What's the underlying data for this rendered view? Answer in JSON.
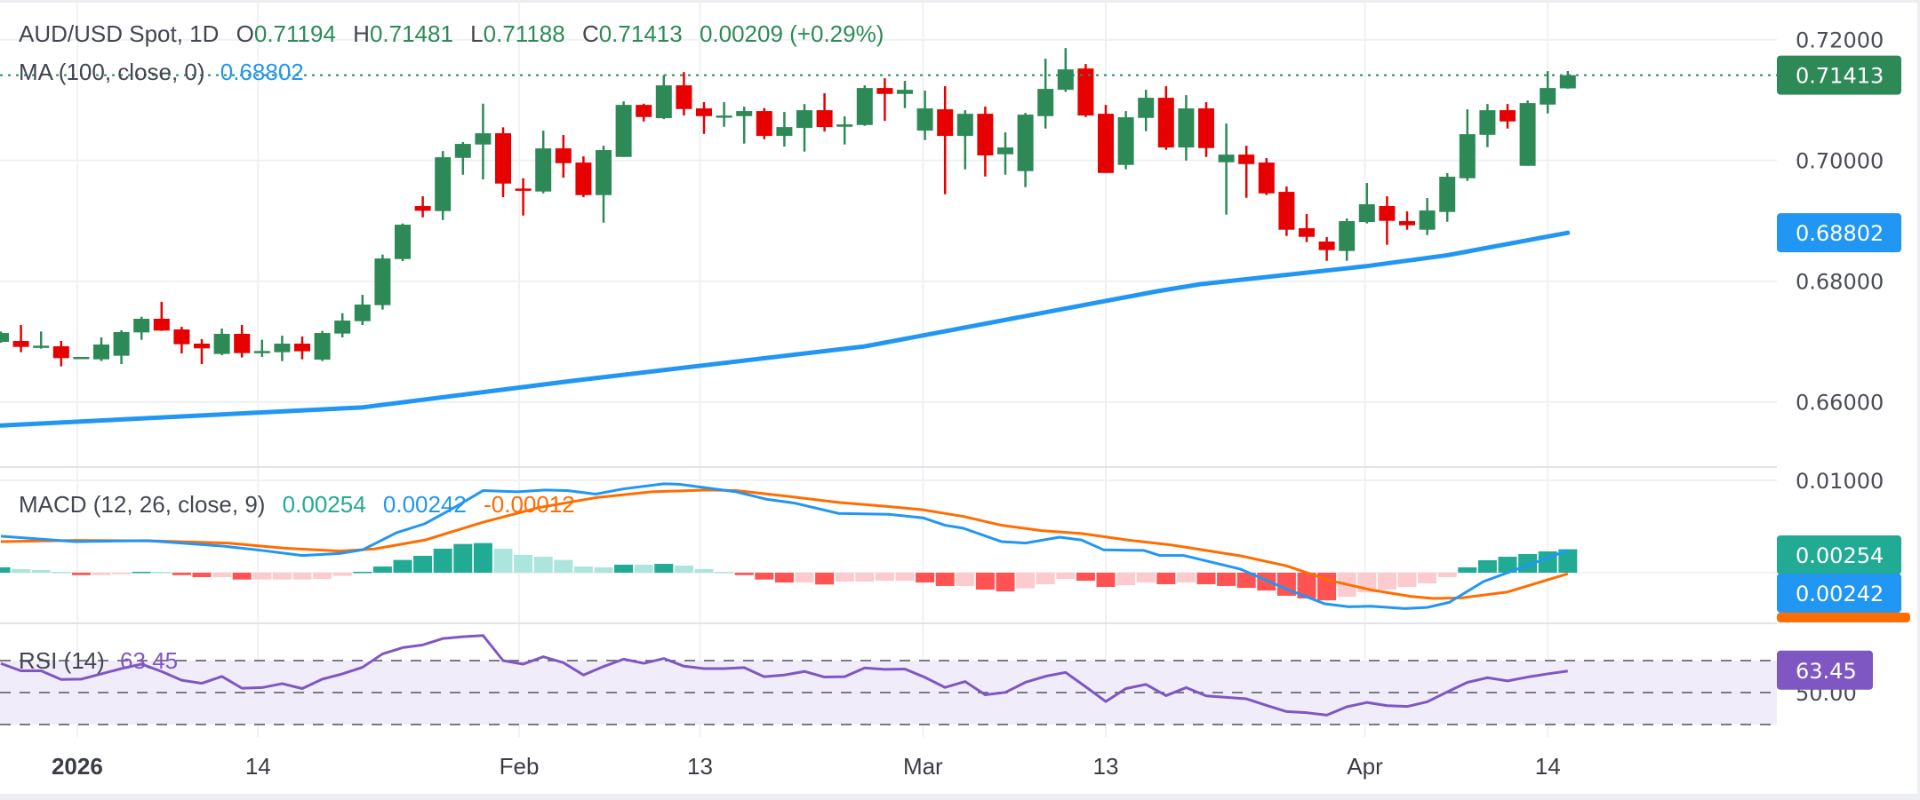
{
  "header": {
    "symbol": "AUD/USD Spot, 1D",
    "o_label": "O",
    "o_value": "0.71194",
    "h_label": "H",
    "h_value": "0.71481",
    "l_label": "L",
    "l_value": "0.71188",
    "c_label": "C",
    "c_value": "0.71413",
    "change": "0.00209 (+0.29%)"
  },
  "ma_legend": {
    "label": "MA (100, close, 0)",
    "value": "0.68802"
  },
  "macd_legend": {
    "label": "MACD (12, 26, close, 9)",
    "hist_value": "0.00254",
    "macd_value": "0.00242",
    "signal_value": "-0.00012"
  },
  "rsi_legend": {
    "label": "RSI (14)",
    "value": "63.45"
  },
  "colors": {
    "up": "#2d8a57",
    "down": "#e60000",
    "ma": "#2196f3",
    "macd": "#2196f3",
    "signal": "#ff6d00",
    "hist_up_strong": "#22ab94",
    "hist_up_weak": "#ace5dc",
    "hist_down_strong": "#ff5252",
    "hist_down_weak": "#fccbcd",
    "rsi": "#7e57c2",
    "rsi_band": "#f0ecf9",
    "grid": "#f0f1f4",
    "divider": "#e0e3eb"
  },
  "chart_data": [
    {
      "type": "candlestick",
      "title": "AUD/USD Spot, 1D",
      "ylim": [
        0.6475,
        0.723
      ],
      "y_ticks": [
        "0.72000",
        "0.70000",
        "0.68000",
        "0.66000"
      ],
      "y_tick_values": [
        0.72,
        0.7,
        0.68,
        0.66
      ],
      "last_price": {
        "value": 0.71413,
        "label": "0.71413"
      },
      "ma_last": {
        "value": 0.68802,
        "label": "0.68802"
      },
      "x_labels": [
        {
          "label": "2026",
          "bar": 3.8
        },
        {
          "label": "14",
          "bar": 12.8
        },
        {
          "label": "Feb",
          "bar": 25.8
        },
        {
          "label": "13",
          "bar": 34.8
        },
        {
          "label": "Mar",
          "bar": 45.9
        },
        {
          "label": "13",
          "bar": 55
        },
        {
          "label": "Apr",
          "bar": 67.9
        },
        {
          "label": "14",
          "bar": 77
        }
      ],
      "ohlc": [
        [
          0.66995,
          0.67167,
          0.66981,
          0.67142
        ],
        [
          0.6701,
          0.67275,
          0.66824,
          0.66912
        ],
        [
          0.66912,
          0.67167,
          0.66883,
          0.66932
        ],
        [
          0.66922,
          0.6701,
          0.66589,
          0.66726
        ],
        [
          0.66726,
          0.66746,
          0.66726,
          0.66746
        ],
        [
          0.66706,
          0.67069,
          0.66677,
          0.66951
        ],
        [
          0.66765,
          0.67187,
          0.66628,
          0.67157
        ],
        [
          0.67152,
          0.67412,
          0.6703,
          0.67378
        ],
        [
          0.67378,
          0.67657,
          0.67177,
          0.67182
        ],
        [
          0.67201,
          0.67245,
          0.66804,
          0.66956
        ],
        [
          0.66966,
          0.6704,
          0.66628,
          0.66888
        ],
        [
          0.66795,
          0.67216,
          0.66775,
          0.67128
        ],
        [
          0.67128,
          0.67275,
          0.66736,
          0.66809
        ],
        [
          0.66824,
          0.6703,
          0.66746,
          0.66844
        ],
        [
          0.66824,
          0.67098,
          0.66677,
          0.66966
        ],
        [
          0.66966,
          0.67084,
          0.66706,
          0.66839
        ],
        [
          0.66701,
          0.67177,
          0.66677,
          0.67142
        ],
        [
          0.67133,
          0.67471,
          0.67069,
          0.67348
        ],
        [
          0.67338,
          0.67775,
          0.67275,
          0.67613
        ],
        [
          0.67603,
          0.68441,
          0.6753,
          0.68377
        ],
        [
          0.68367,
          0.68956,
          0.68333,
          0.68936
        ],
        [
          0.69245,
          0.69406,
          0.69058,
          0.69166
        ],
        [
          0.69161,
          0.70156,
          0.69014,
          0.70053
        ],
        [
          0.70043,
          0.70303,
          0.69764,
          0.70274
        ],
        [
          0.70264,
          0.7094,
          0.69686,
          0.7045
        ],
        [
          0.7045,
          0.70548,
          0.69392,
          0.69617
        ],
        [
          0.69534,
          0.69705,
          0.69088,
          0.69504
        ],
        [
          0.69485,
          0.70494,
          0.69455,
          0.702
        ],
        [
          0.702,
          0.70421,
          0.69715,
          0.69955
        ],
        [
          0.69965,
          0.70068,
          0.69392,
          0.69426
        ],
        [
          0.69426,
          0.70244,
          0.6897,
          0.70171
        ],
        [
          0.70058,
          0.70979,
          0.70058,
          0.7092
        ],
        [
          0.7092,
          0.7094,
          0.70646,
          0.7072
        ],
        [
          0.707,
          0.71415,
          0.70685,
          0.71244
        ],
        [
          0.71244,
          0.71464,
          0.70744,
          0.70852
        ],
        [
          0.70862,
          0.70965,
          0.7044,
          0.70734
        ],
        [
          0.7071,
          0.70965,
          0.70558,
          0.70744
        ],
        [
          0.70734,
          0.70891,
          0.70279,
          0.70818
        ],
        [
          0.70818,
          0.70867,
          0.70352,
          0.70406
        ],
        [
          0.70406,
          0.70803,
          0.7023,
          0.70553
        ],
        [
          0.70538,
          0.70935,
          0.70146,
          0.70832
        ],
        [
          0.70832,
          0.71112,
          0.70479,
          0.70553
        ],
        [
          0.70558,
          0.70729,
          0.70264,
          0.70597
        ],
        [
          0.70587,
          0.71244,
          0.70573,
          0.712
        ],
        [
          0.712,
          0.71361,
          0.70656,
          0.71102
        ],
        [
          0.71102,
          0.71317,
          0.70867,
          0.7117
        ],
        [
          0.70494,
          0.71156,
          0.70337,
          0.70862
        ],
        [
          0.70847,
          0.71229,
          0.69441,
          0.70406
        ],
        [
          0.70406,
          0.70832,
          0.69852,
          0.70773
        ],
        [
          0.70773,
          0.70891,
          0.69735,
          0.70083
        ],
        [
          0.70102,
          0.70465,
          0.69764,
          0.70215
        ],
        [
          0.69823,
          0.70788,
          0.69558,
          0.70759
        ],
        [
          0.70734,
          0.71685,
          0.70528,
          0.71185
        ],
        [
          0.7117,
          0.71861,
          0.71136,
          0.71508
        ],
        [
          0.71523,
          0.71597,
          0.7072,
          0.70744
        ],
        [
          0.70773,
          0.7092,
          0.69793,
          0.69793
        ],
        [
          0.69926,
          0.70818,
          0.69852,
          0.70715
        ],
        [
          0.70705,
          0.7117,
          0.70484,
          0.71038
        ],
        [
          0.71038,
          0.71229,
          0.70176,
          0.70215
        ],
        [
          0.70215,
          0.71082,
          0.7,
          0.70862
        ],
        [
          0.70862,
          0.70965,
          0.70058,
          0.70205
        ],
        [
          0.6997,
          0.70612,
          0.69103,
          0.70097
        ],
        [
          0.70097,
          0.70244,
          0.69382,
          0.6994
        ],
        [
          0.69965,
          0.70038,
          0.69426,
          0.69455
        ],
        [
          0.6948,
          0.69568,
          0.6875,
          0.68853
        ],
        [
          0.68877,
          0.69112,
          0.68647,
          0.68735
        ],
        [
          0.68657,
          0.6873,
          0.68338,
          0.68515
        ],
        [
          0.685,
          0.69039,
          0.68338,
          0.68995
        ],
        [
          0.6898,
          0.69627,
          0.68956,
          0.69274
        ],
        [
          0.69245,
          0.69406,
          0.68603,
          0.69
        ],
        [
          0.68995,
          0.69156,
          0.68853,
          0.68926
        ],
        [
          0.68853,
          0.69377,
          0.68764,
          0.69171
        ],
        [
          0.69147,
          0.69789,
          0.68985,
          0.6973
        ],
        [
          0.69705,
          0.70847,
          0.69661,
          0.70435
        ],
        [
          0.70425,
          0.70935,
          0.7022,
          0.70832
        ],
        [
          0.70832,
          0.70935,
          0.70528,
          0.70646
        ],
        [
          0.69911,
          0.70994,
          0.69911,
          0.7095
        ],
        [
          0.70925,
          0.71479,
          0.70778,
          0.712
        ],
        [
          0.71194,
          0.71481,
          0.71188,
          0.71413
        ]
      ],
      "ma_100": [
        [
          0,
          0.6561
        ],
        [
          18,
          0.6591
        ],
        [
          28.7,
          0.6636
        ],
        [
          43,
          0.6692
        ],
        [
          57.5,
          0.6783
        ],
        [
          59.7,
          0.6795
        ],
        [
          68,
          0.6825
        ],
        [
          72,
          0.6843
        ],
        [
          78,
          0.68802
        ]
      ]
    },
    {
      "type": "macd",
      "ylim": [
        -0.00529,
        0.01144
      ],
      "y_ticks": [
        "0.01000"
      ],
      "y_tick_values": [
        0.01
      ],
      "histogram": [
        0.00058,
        0.00039,
        0.00029,
        0.0001,
        -0.00026,
        -0.00026,
        -0.00016,
        0.0001,
        0.0001,
        -0.00026,
        -0.00048,
        -0.00048,
        -0.00074,
        -0.00074,
        -0.00074,
        -0.00074,
        -0.00067,
        -0.00035,
        0.0001,
        0.00067,
        0.00138,
        0.00183,
        0.0026,
        0.00311,
        0.00321,
        0.0026,
        0.00193,
        0.00173,
        0.00138,
        0.00067,
        0.00058,
        0.00087,
        0.00087,
        0.00096,
        0.00077,
        0.00039,
        0.0001,
        -0.00026,
        -0.00074,
        -0.00106,
        -0.00106,
        -0.00128,
        -0.00096,
        -0.00096,
        -0.00087,
        -0.00087,
        -0.00106,
        -0.00144,
        -0.00144,
        -0.00183,
        -0.00202,
        -0.0017,
        -0.00125,
        -0.00067,
        -0.00087,
        -0.00154,
        -0.00135,
        -0.00106,
        -0.00125,
        -0.00106,
        -0.00125,
        -0.00144,
        -0.00164,
        -0.00193,
        -0.0025,
        -0.00279,
        -0.00299,
        -0.0026,
        -0.00212,
        -0.00183,
        -0.00154,
        -0.00116,
        -0.00048,
        0.00058,
        0.00135,
        0.00173,
        0.00202,
        0.00231,
        0.00254
      ],
      "macd_line": [
        [
          0,
          0.00395
        ],
        [
          3.7,
          0.00337
        ],
        [
          7.3,
          0.00347
        ],
        [
          11,
          0.00289
        ],
        [
          13,
          0.00241
        ],
        [
          15,
          0.00186
        ],
        [
          16.9,
          0.00209
        ],
        [
          18,
          0.00247
        ],
        [
          19.7,
          0.00433
        ],
        [
          21.1,
          0.0053
        ],
        [
          22.5,
          0.00697
        ],
        [
          24,
          0.00889
        ],
        [
          25.7,
          0.00876
        ],
        [
          27.1,
          0.00896
        ],
        [
          28.2,
          0.00889
        ],
        [
          29.6,
          0.00851
        ],
        [
          31,
          0.00908
        ],
        [
          33,
          0.00963
        ],
        [
          33.8,
          0.00957
        ],
        [
          36.6,
          0.00876
        ],
        [
          38.1,
          0.00796
        ],
        [
          39.5,
          0.00754
        ],
        [
          41.7,
          0.00642
        ],
        [
          44.2,
          0.00632
        ],
        [
          45.9,
          0.00594
        ],
        [
          47,
          0.00514
        ],
        [
          47.9,
          0.00482
        ],
        [
          49.8,
          0.00337
        ],
        [
          51,
          0.00321
        ],
        [
          52.7,
          0.00385
        ],
        [
          53.8,
          0.00353
        ],
        [
          54.9,
          0.00247
        ],
        [
          56.9,
          0.00241
        ],
        [
          57.7,
          0.00186
        ],
        [
          58.9,
          0.00186
        ],
        [
          61.7,
          0.00039
        ],
        [
          64,
          -0.00177
        ],
        [
          65.9,
          -0.00337
        ],
        [
          67.1,
          -0.00369
        ],
        [
          68.2,
          -0.00363
        ],
        [
          69.9,
          -0.00388
        ],
        [
          71,
          -0.00376
        ],
        [
          72.1,
          -0.00321
        ],
        [
          73.8,
          -0.00096
        ],
        [
          75.2,
          0.00016
        ],
        [
          78,
          0.00242
        ]
      ],
      "signal_line": [
        [
          0,
          0.00337
        ],
        [
          3.7,
          0.0035
        ],
        [
          7.9,
          0.00343
        ],
        [
          11.3,
          0.00321
        ],
        [
          14.1,
          0.00266
        ],
        [
          16.9,
          0.00234
        ],
        [
          18.6,
          0.00257
        ],
        [
          21.1,
          0.00353
        ],
        [
          24,
          0.00546
        ],
        [
          26.8,
          0.00706
        ],
        [
          29.6,
          0.00812
        ],
        [
          32.4,
          0.00876
        ],
        [
          35.2,
          0.00896
        ],
        [
          36.6,
          0.00889
        ],
        [
          39.5,
          0.00819
        ],
        [
          41.7,
          0.00761
        ],
        [
          44.2,
          0.00716
        ],
        [
          45.9,
          0.00681
        ],
        [
          47.9,
          0.0061
        ],
        [
          49.8,
          0.00514
        ],
        [
          51.8,
          0.00456
        ],
        [
          53.8,
          0.00424
        ],
        [
          56.1,
          0.00353
        ],
        [
          58.3,
          0.00299
        ],
        [
          61.7,
          0.00183
        ],
        [
          64,
          0.00074
        ],
        [
          66.2,
          -0.00087
        ],
        [
          68.2,
          -0.00186
        ],
        [
          70.2,
          -0.00257
        ],
        [
          71.3,
          -0.00279
        ],
        [
          72.7,
          -0.00273
        ],
        [
          75,
          -0.00209
        ],
        [
          78,
          -0.00012
        ]
      ]
    },
    {
      "type": "line",
      "ylim": [
        22,
        93
      ],
      "bands": [
        30,
        50,
        70
      ],
      "y_ticks": [
        "50.00"
      ],
      "y_tick_values": [
        50
      ],
      "rsi": [
        68.2,
        63.6,
        63.6,
        58.2,
        58.4,
        61.7,
        65.0,
        67.8,
        63.2,
        57.7,
        55.8,
        60.1,
        52.7,
        53.1,
        55.6,
        52.5,
        58.4,
        61.7,
        65.8,
        74.2,
        78.1,
        79.8,
        83.8,
        84.9,
        85.7,
        70.0,
        67.8,
        72.4,
        68.7,
        61.0,
        66.3,
        70.9,
        68.3,
        71.3,
        66.5,
        65.0,
        65.0,
        65.6,
        59.9,
        61.0,
        63.2,
        59.7,
        59.9,
        65.4,
        64.5,
        64.7,
        59.5,
        53.2,
        56.9,
        48.6,
        50.1,
        56.4,
        60.2,
        62.6,
        53.6,
        44.4,
        52.5,
        55.1,
        48.1,
        53.1,
        47.9,
        47.0,
        46.1,
        42.0,
        38.1,
        37.4,
        35.9,
        41.1,
        43.8,
        41.8,
        41.3,
        44.2,
        50.4,
        56.4,
        59.3,
        57.3,
        59.7,
        61.7,
        63.45
      ]
    }
  ]
}
